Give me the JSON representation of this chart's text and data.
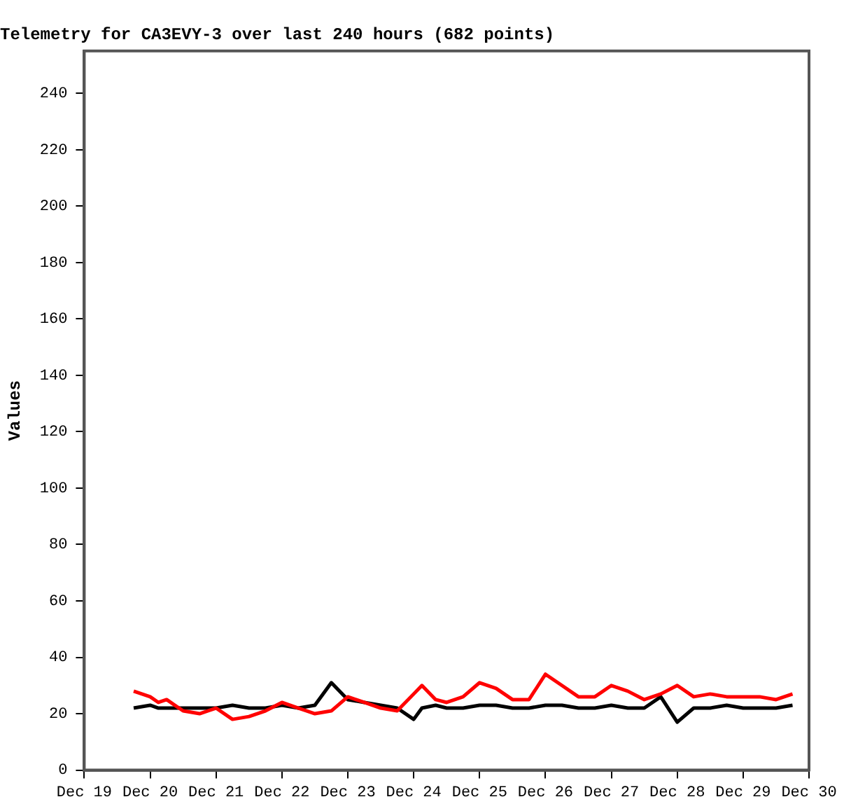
{
  "chart_data": {
    "type": "line",
    "title": "Telemetry for CA3EVY-3 over last 240 hours (682 points)",
    "ylabel": "Values",
    "xlim": [
      "--12-19",
      "--12-30"
    ],
    "xticks": [
      {
        "value": "--12-19",
        "label": "Dec 19"
      },
      {
        "value": "--12-20",
        "label": "Dec 20"
      },
      {
        "value": "--12-21",
        "label": "Dec 21"
      },
      {
        "value": "--12-22",
        "label": "Dec 22"
      },
      {
        "value": "--12-23",
        "label": "Dec 23"
      },
      {
        "value": "--12-24",
        "label": "Dec 24"
      },
      {
        "value": "--12-25",
        "label": "Dec 25"
      },
      {
        "value": "--12-26",
        "label": "Dec 26"
      },
      {
        "value": "--12-27",
        "label": "Dec 27"
      },
      {
        "value": "--12-28",
        "label": "Dec 28"
      },
      {
        "value": "--12-29",
        "label": "Dec 29"
      },
      {
        "value": "--12-30",
        "label": "Dec 30"
      }
    ],
    "ylim": [
      0,
      255
    ],
    "yticks": [
      0,
      20,
      40,
      60,
      80,
      100,
      120,
      140,
      160,
      180,
      200,
      220,
      240
    ],
    "grid": false,
    "legend": false,
    "marker": "none",
    "line_style": "solid",
    "x": [
      "--12-19T18:00",
      "--12-20T00:00",
      "--12-20T03:00",
      "--12-20T06:00",
      "--12-20T12:00",
      "--12-20T18:00",
      "--12-21T00:00",
      "--12-21T06:00",
      "--12-21T12:00",
      "--12-21T18:00",
      "--12-22T00:00",
      "--12-22T06:00",
      "--12-22T12:00",
      "--12-22T18:00",
      "--12-23T00:00",
      "--12-23T06:00",
      "--12-23T12:00",
      "--12-23T18:00",
      "--12-24T00:00",
      "--12-24T03:00",
      "--12-24T08:00",
      "--12-24T12:00",
      "--12-24T18:00",
      "--12-25T00:00",
      "--12-25T06:00",
      "--12-25T12:00",
      "--12-25T18:00",
      "--12-26T00:00",
      "--12-26T06:00",
      "--12-26T12:00",
      "--12-26T18:00",
      "--12-27T00:00",
      "--12-27T06:00",
      "--12-27T12:00",
      "--12-27T18:00",
      "--12-28T00:00",
      "--12-28T06:00",
      "--12-28T12:00",
      "--12-28T18:00",
      "--12-29T00:00",
      "--12-29T06:00",
      "--12-29T12:00",
      "--12-29T18:00"
    ],
    "series": [
      {
        "color": "#ff0000",
        "values": [
          28,
          26,
          24,
          25,
          21,
          20,
          22,
          18,
          19,
          21,
          24,
          22,
          20,
          21,
          26,
          24,
          22,
          21,
          27,
          30,
          25,
          24,
          26,
          31,
          29,
          25,
          25,
          34,
          30,
          26,
          26,
          30,
          28,
          25,
          27,
          30,
          26,
          27,
          26,
          26,
          26,
          25,
          27
        ]
      },
      {
        "color": "#000000",
        "values": [
          22,
          23,
          22,
          22,
          22,
          22,
          22,
          23,
          22,
          22,
          23,
          22,
          23,
          31,
          25,
          24,
          23,
          22,
          18,
          22,
          23,
          22,
          22,
          23,
          23,
          22,
          22,
          23,
          23,
          22,
          22,
          23,
          22,
          22,
          26,
          17,
          22,
          22,
          23,
          22,
          22,
          22,
          23
        ]
      }
    ]
  }
}
